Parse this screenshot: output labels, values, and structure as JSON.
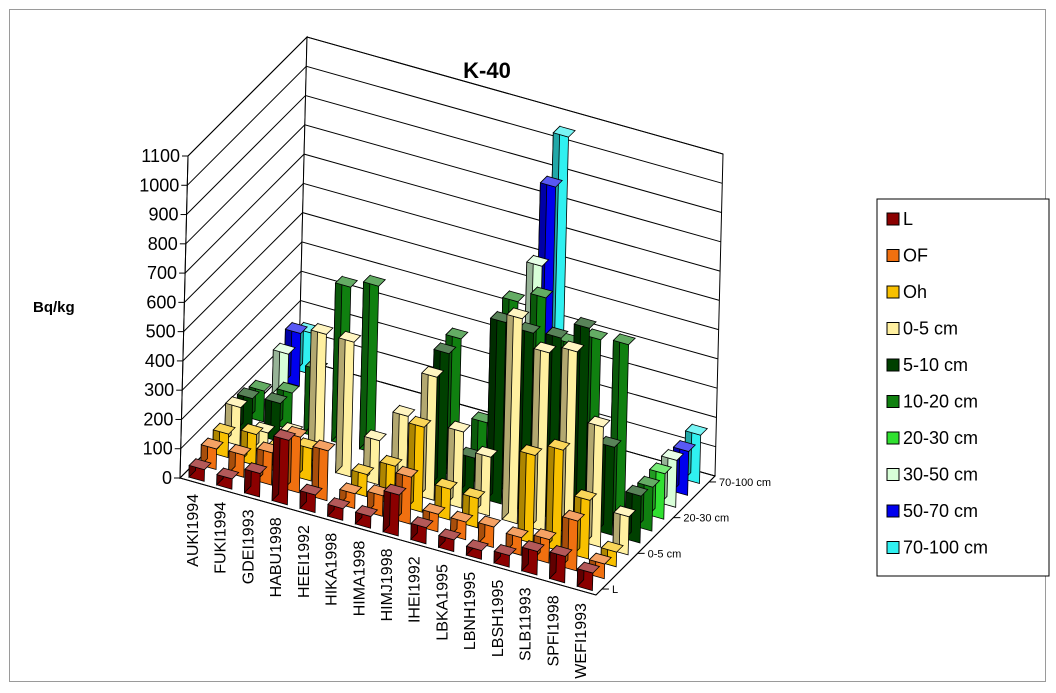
{
  "chart_data": {
    "type": "bar",
    "subtype": "3d-column",
    "title": "K-40",
    "ylabel": "Bq/kg",
    "xlabel": "",
    "ylim": [
      0,
      1100
    ],
    "yticks": [
      0,
      100,
      200,
      300,
      400,
      500,
      600,
      700,
      800,
      900,
      1000,
      1100
    ],
    "grid": true,
    "legend_position": "right",
    "categories": [
      "AUKI1994",
      "FUKI1994",
      "GDEI1993",
      "HABU1998",
      "HEEI1992",
      "HIKA1998",
      "HIMA1998",
      "HIMJ1998",
      "IHEI1992",
      "LBKA1995",
      "LBNH1995",
      "LBSH1995",
      "SLB11993",
      "SPFI1998",
      "WEFI1993"
    ],
    "depth_axis_labels": [
      "L",
      "0-5 cm",
      "20-30 cm",
      "70-100 cm"
    ],
    "series": [
      {
        "name": "L",
        "color": "#8b0000",
        "values": [
          40,
          35,
          80,
          220,
          60,
          40,
          40,
          140,
          55,
          40,
          30,
          40,
          80,
          90,
          60
        ]
      },
      {
        "name": "OF",
        "color": "#f07010",
        "values": [
          70,
          75,
          110,
          190,
          170,
          50,
          70,
          160,
          60,
          60,
          70,
          60,
          80,
          170,
          50
        ]
      },
      {
        "name": "Oh",
        "color": "#f8c000",
        "values": [
          80,
          105,
          85,
          110,
          0,
          75,
          130,
          290,
          105,
          100,
          0,
          300,
          345,
          200,
          50
        ]
      },
      {
        "name": "0-5 cm",
        "color": "#fff0a0",
        "values": [
          130,
          70,
          95,
          460,
          460,
          150,
          260,
          420,
          260,
          200,
          700,
          610,
          640,
          410,
          130
        ]
      },
      {
        "name": "5-10 cm",
        "color": "#004000",
        "values": [
          120,
          130,
          0,
          0,
          0,
          0,
          0,
          460,
          130,
          620,
          610,
          620,
          680,
          300,
          160
        ]
      },
      {
        "name": "10-20 cm",
        "color": "#108010",
        "values": [
          105,
          125,
          230,
          540,
          570,
          0,
          0,
          470,
          210,
          650,
          690,
          560,
          600,
          610,
          150
        ]
      },
      {
        "name": "20-30 cm",
        "color": "#30e030",
        "values": [
          0,
          0,
          0,
          0,
          0,
          0,
          0,
          0,
          0,
          0,
          0,
          0,
          0,
          0,
          155
        ]
      },
      {
        "name": "30-50 cm",
        "color": "#d8ffd8",
        "values": [
          150,
          0,
          0,
          0,
          0,
          0,
          0,
          0,
          0,
          690,
          0,
          0,
          0,
          0,
          160
        ]
      },
      {
        "name": "50-70 cm",
        "color": "#0000ee",
        "values": [
          180,
          0,
          0,
          0,
          0,
          0,
          0,
          0,
          0,
          920,
          0,
          0,
          0,
          0,
          150
        ]
      },
      {
        "name": "70-100 cm",
        "color": "#30f0f0",
        "values": [
          140,
          0,
          0,
          0,
          0,
          0,
          0,
          0,
          0,
          1050,
          0,
          0,
          0,
          0,
          165
        ]
      }
    ]
  }
}
